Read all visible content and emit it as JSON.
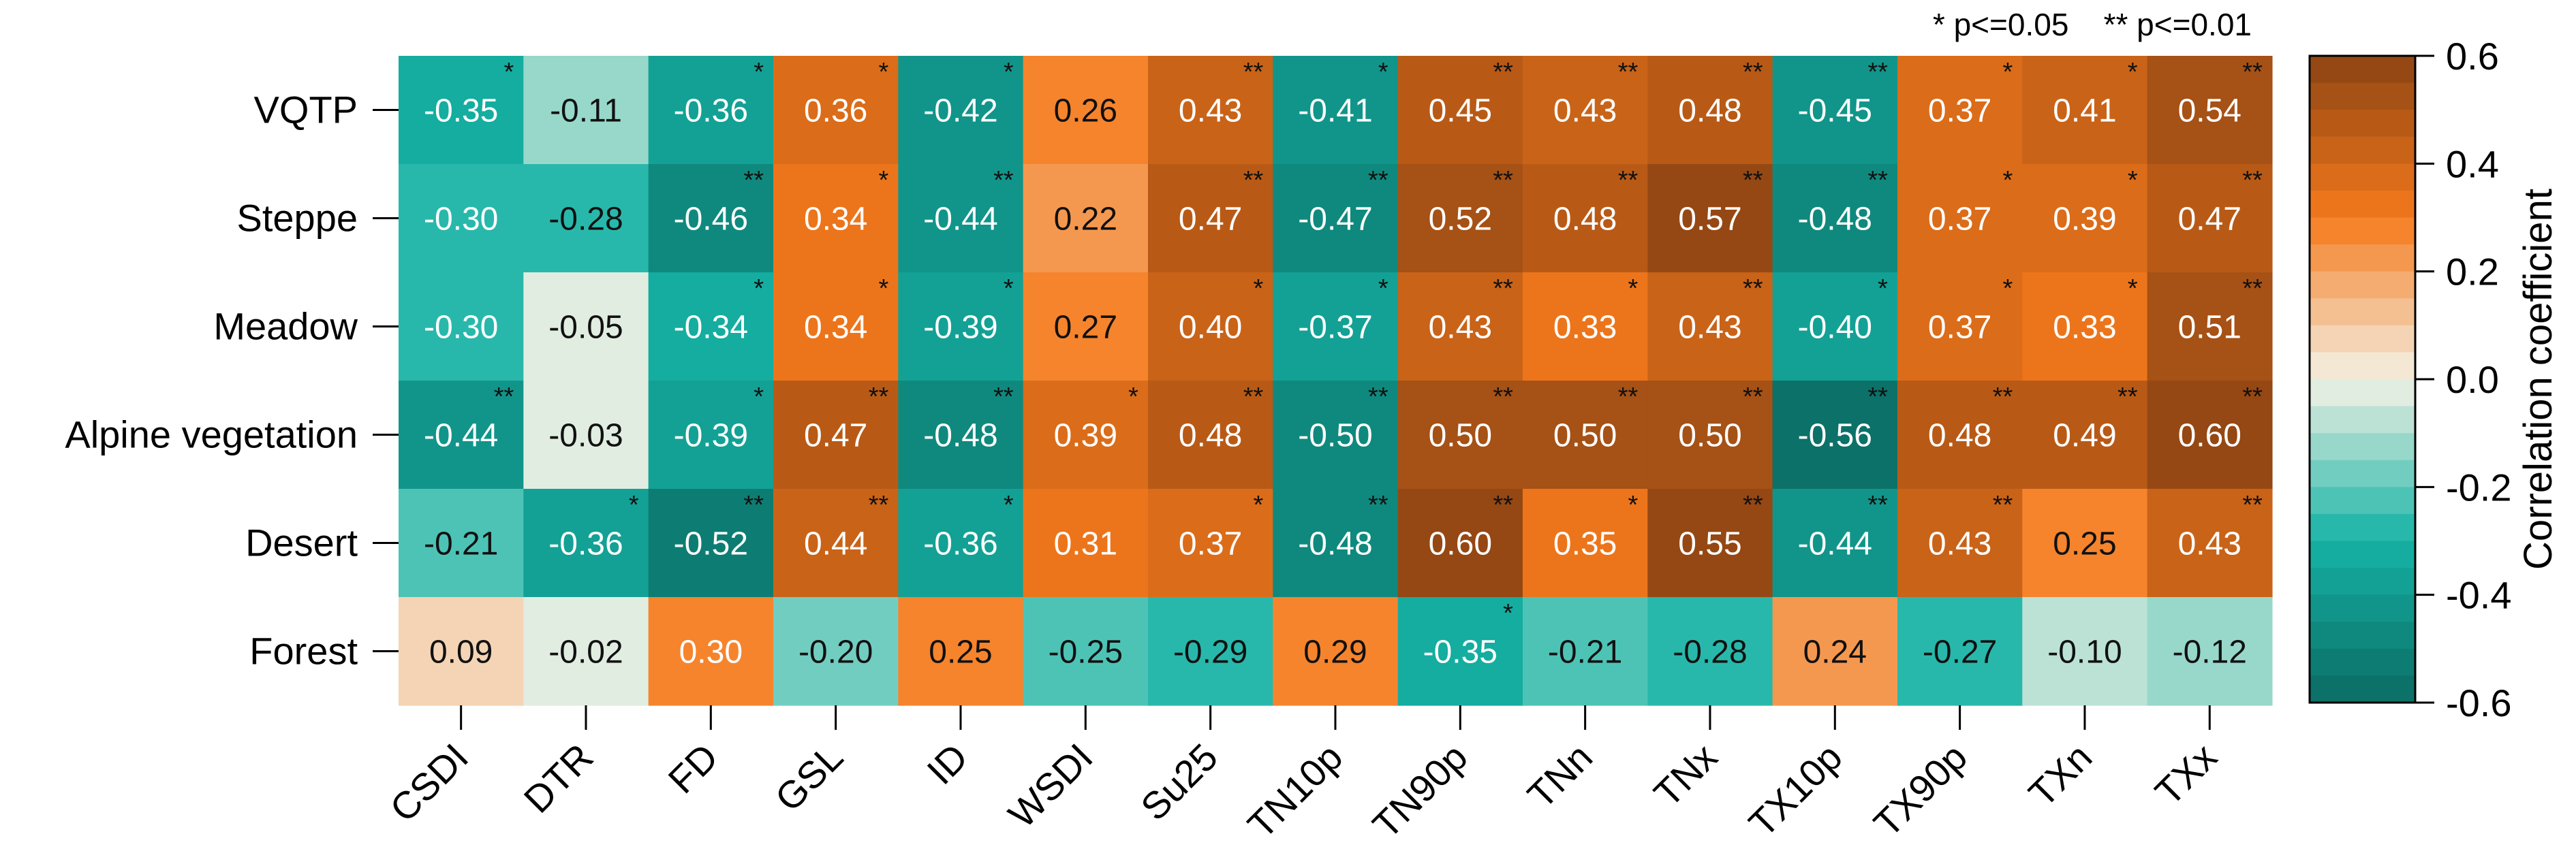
{
  "chart_data": {
    "type": "heatmap",
    "rows": [
      "VQTP",
      "Steppe",
      "Meadow",
      "Alpine vegetation",
      "Desert",
      "Forest"
    ],
    "columns": [
      "CSDI",
      "DTR",
      "FD",
      "GSL",
      "ID",
      "WSDI",
      "Su25",
      "TN10p",
      "TN90p",
      "TNn",
      "TNx",
      "TX10p",
      "TX90p",
      "TXn",
      "TXx"
    ],
    "values": [
      [
        -0.35,
        -0.11,
        -0.36,
        0.36,
        -0.42,
        0.26,
        0.43,
        -0.41,
        0.45,
        0.43,
        0.48,
        -0.45,
        0.37,
        0.41,
        0.54
      ],
      [
        -0.3,
        -0.28,
        -0.46,
        0.34,
        -0.44,
        0.22,
        0.47,
        -0.47,
        0.52,
        0.48,
        0.57,
        -0.48,
        0.37,
        0.39,
        0.47
      ],
      [
        -0.3,
        -0.05,
        -0.34,
        0.34,
        -0.39,
        0.27,
        0.4,
        -0.37,
        0.43,
        0.33,
        0.43,
        -0.4,
        0.37,
        0.33,
        0.51
      ],
      [
        -0.44,
        -0.03,
        -0.39,
        0.47,
        -0.48,
        0.39,
        0.48,
        -0.5,
        0.5,
        0.5,
        0.5,
        -0.56,
        0.48,
        0.49,
        0.6
      ],
      [
        -0.21,
        -0.36,
        -0.52,
        0.44,
        -0.36,
        0.31,
        0.37,
        -0.48,
        0.6,
        0.35,
        0.55,
        -0.44,
        0.43,
        0.25,
        0.43
      ],
      [
        0.09,
        -0.02,
        0.3,
        -0.2,
        0.25,
        -0.25,
        -0.29,
        0.29,
        -0.35,
        -0.21,
        -0.28,
        0.24,
        -0.27,
        -0.1,
        -0.12
      ]
    ],
    "labels": [
      [
        "-0.35",
        "-0.11",
        "-0.36",
        "0.36",
        "-0.42",
        "0.26",
        "0.43",
        "-0.41",
        "0.45",
        "0.43",
        "0.48",
        "-0.45",
        "0.37",
        "0.41",
        "0.54"
      ],
      [
        "-0.30",
        "-0.28",
        "-0.46",
        "0.34",
        "-0.44",
        "0.22",
        "0.47",
        "-0.47",
        "0.52",
        "0.48",
        "0.57",
        "-0.48",
        "0.37",
        "0.39",
        "0.47"
      ],
      [
        "-0.30",
        "-0.05",
        "-0.34",
        "0.34",
        "-0.39",
        "0.27",
        "0.40",
        "-0.37",
        "0.43",
        "0.33",
        "0.43",
        "-0.40",
        "0.37",
        "0.33",
        "0.51"
      ],
      [
        "-0.44",
        "-0.03",
        "-0.39",
        "0.47",
        "-0.48",
        "0.39",
        "0.48",
        "-0.50",
        "0.50",
        "0.50",
        "0.50",
        "-0.56",
        "0.48",
        "0.49",
        "0.60"
      ],
      [
        "-0.21",
        "-0.36",
        "-0.52",
        "0.44",
        "-0.36",
        "0.31",
        "0.37",
        "-0.48",
        "0.60",
        "0.35",
        "0.55",
        "-0.44",
        "0.43",
        "0.25",
        "0.43"
      ],
      [
        "0.09",
        "-0.02",
        "0.30",
        "-0.20",
        "0.25",
        "-0.25",
        "-0.29",
        "0.29",
        "-0.35",
        "-0.21",
        "-0.28",
        "0.24",
        "-0.27",
        "-0.10",
        "-0.12"
      ]
    ],
    "significance": [
      [
        "*",
        "",
        "*",
        "*",
        "*",
        "",
        "**",
        "*",
        "**",
        "**",
        "**",
        "**",
        "*",
        "*",
        "**"
      ],
      [
        "",
        "",
        "**",
        "*",
        "**",
        "",
        "**",
        "**",
        "**",
        "**",
        "**",
        "**",
        "*",
        "*",
        "**"
      ],
      [
        "",
        "",
        "*",
        "*",
        "*",
        "",
        "*",
        "*",
        "**",
        "*",
        "**",
        "*",
        "*",
        "*",
        "**"
      ],
      [
        "**",
        "",
        "*",
        "**",
        "**",
        "*",
        "**",
        "**",
        "**",
        "**",
        "**",
        "**",
        "**",
        "**",
        "**"
      ],
      [
        "",
        "*",
        "**",
        "**",
        "*",
        "",
        "*",
        "**",
        "**",
        "*",
        "**",
        "**",
        "**",
        "",
        "**"
      ],
      [
        "",
        "",
        "",
        "",
        "",
        "",
        "",
        "",
        "*",
        "",
        "",
        "",
        "",
        "",
        ""
      ]
    ],
    "colorbar": {
      "title": "Correlation coefficient",
      "range": [
        -0.6,
        0.6
      ],
      "ticks": [
        -0.6,
        -0.4,
        -0.2,
        0.0,
        0.2,
        0.4,
        0.6
      ],
      "tick_labels": [
        "-0.6",
        "-0.4",
        "-0.2",
        "0.0",
        "0.2",
        "0.4",
        "0.6"
      ]
    },
    "significance_legend": "* p<=0.05    ** p<=0.01"
  },
  "colors": {
    "neg_strong": "#0b6b62",
    "neg_mid": "#15b3a6",
    "neutral": "#f4f2e6",
    "pos_mid": "#f57a1c",
    "pos_strong": "#8c4312"
  }
}
